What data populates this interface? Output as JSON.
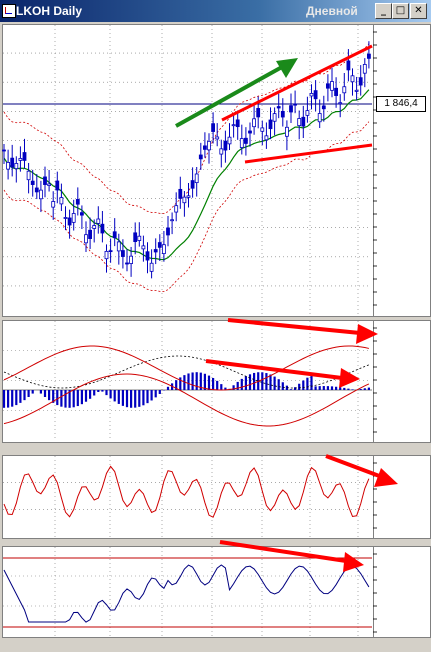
{
  "window": {
    "title": "LKOH Daily",
    "timeframe_label": "Дневной",
    "minimize_glyph": "_",
    "restore_glyph": "□",
    "close_glyph": "✕"
  },
  "last_price_label": "1 846,4",
  "colors": {
    "candle": "#0000c0",
    "bollinger": "#d00000",
    "moving_average": "#008000",
    "macd_hist": "#0000c0",
    "oscillator": "#d00000",
    "rsi_line": "#000080",
    "annotation_up": "#1a8a1a",
    "annotation_down": "#ff0000"
  },
  "icons": [
    "app-icon",
    "minimize-icon",
    "restore-icon",
    "close-icon"
  ]
}
